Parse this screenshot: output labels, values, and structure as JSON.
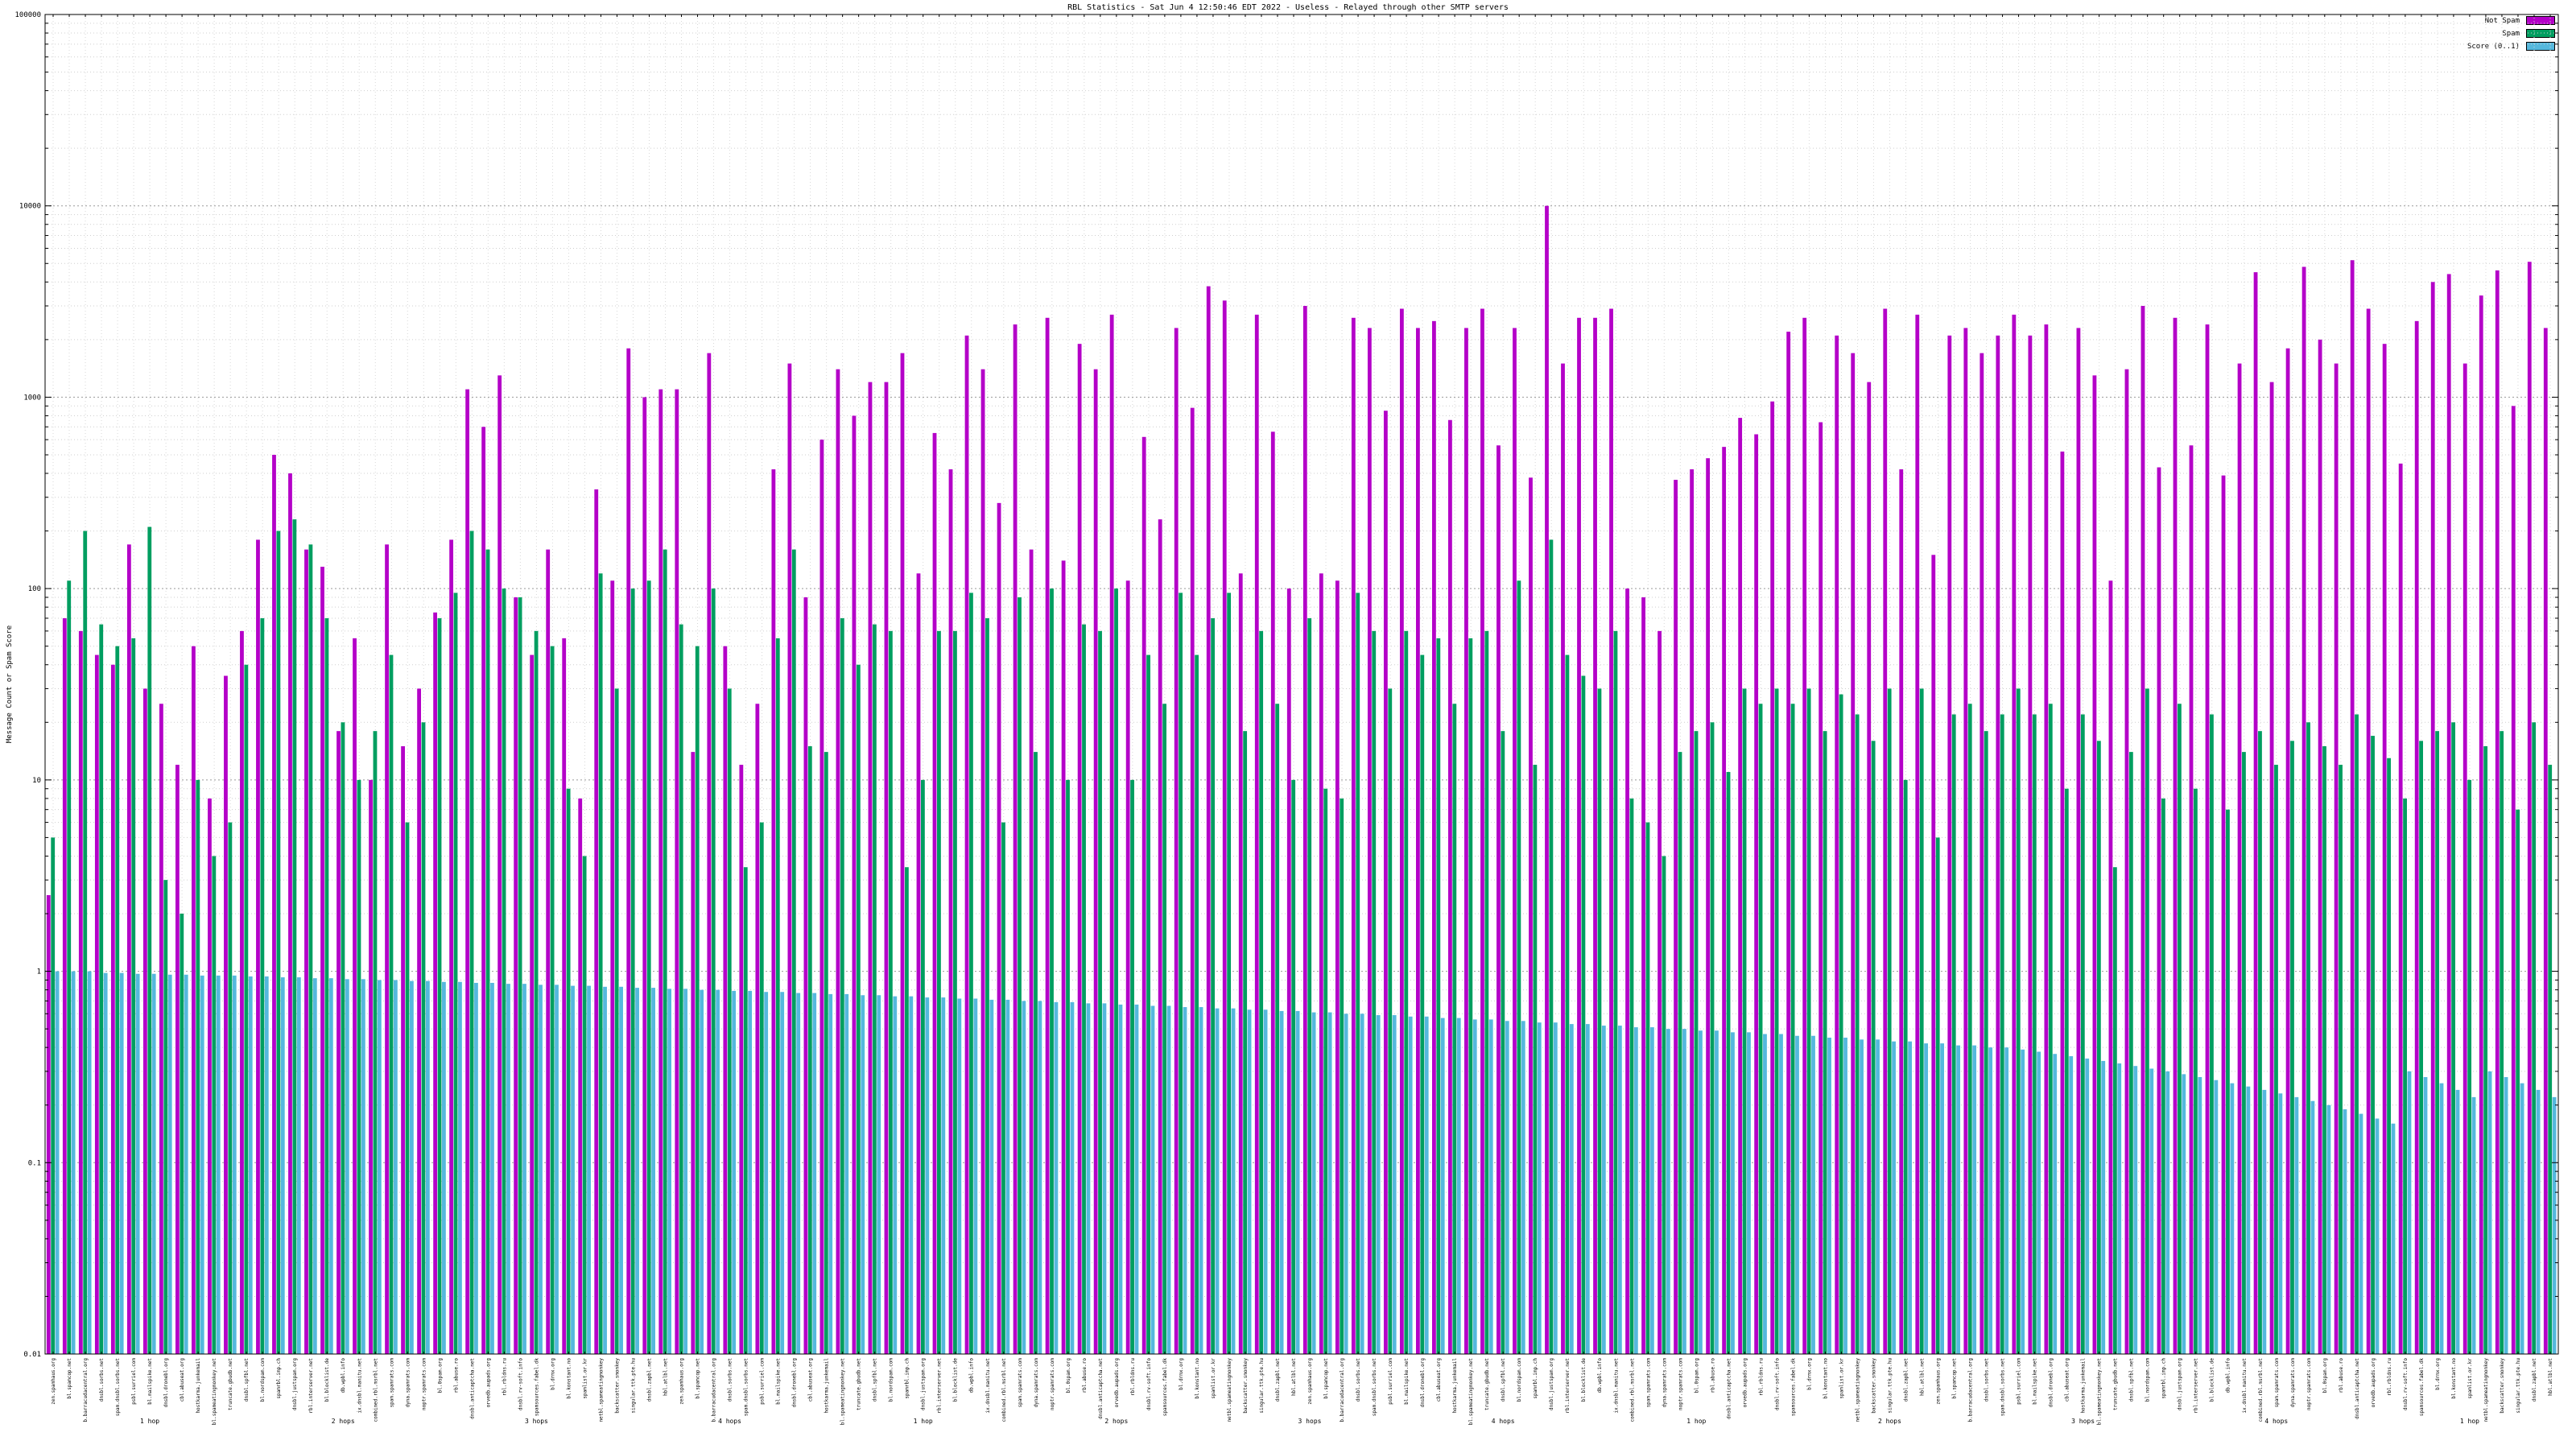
{
  "chart_data": {
    "type": "bar",
    "title": "RBL Statistics - Sat Jun 4 12:50:46 EDT 2022 - Useless - Relayed through other SMTP servers",
    "ylabel": "Message Count or Spam Score",
    "yscale": "log",
    "ylim": [
      0.01,
      100000
    ],
    "ytick_labels": [
      "0.01",
      "0.1",
      "1",
      "10",
      "100",
      "1000",
      "10000",
      "100000"
    ],
    "grid": true,
    "legend_position": "top-right",
    "categories": [
      "zen.spamhaus.org",
      "bl.spamcop.net",
      "b.barracudacentral.org",
      "dnsbl.sorbs.net",
      "spam.dnsbl.sorbs.net",
      "psbl.surriel.com",
      "bl.mailspike.net",
      "dnsbl.dronebl.org",
      "cbl.abuseat.org",
      "hostkarma.junkemail",
      "bl.spameatingmonkey.net",
      "truncate.gbudb.net",
      "dnsbl.spfbl.net",
      "bl.nordspam.com",
      "spamrbl.imp.ch",
      "dnsbl.justspam.org",
      "rbl.interserver.net",
      "bl.blocklist.de",
      "db.wpbl.info",
      "ix.dnsbl.manitu.net",
      "combined.rbl.msrbl.net",
      "spam.spamrats.com",
      "dyna.spamrats.com",
      "noptr.spamrats.com",
      "bl.0spam.org",
      "rbl.abuse.ro",
      "dnsbl.anticaptcha.net",
      "orvedb.aupads.org",
      "rbl.rbldns.ru",
      "dnsbl.rv-soft.info",
      "spamsources.fabel.dk",
      "bl.drmx.org",
      "bl.konstant.no",
      "spamlist.or.kr",
      "netbl.spameatingmonkey",
      "backscatter.smonkey",
      "singular.ttk.pte.hu",
      "dnsbl.zapbl.net",
      "hbl.atlbl.net"
    ],
    "hop_labels": [
      {
        "index": 6,
        "label": "1 hop"
      },
      {
        "index": 18,
        "label": "2 hops"
      },
      {
        "index": 30,
        "label": "3 hops"
      },
      {
        "index": 42,
        "label": "4 hops"
      },
      {
        "index": 54,
        "label": "1 hop"
      },
      {
        "index": 66,
        "label": "2 hops"
      },
      {
        "index": 78,
        "label": "3 hops"
      },
      {
        "index": 90,
        "label": "4 hops"
      },
      {
        "index": 102,
        "label": "1 hop"
      },
      {
        "index": 114,
        "label": "2 hops"
      },
      {
        "index": 126,
        "label": "3 hops"
      },
      {
        "index": 138,
        "label": "4 hops"
      },
      {
        "index": 150,
        "label": "1 hop"
      }
    ],
    "series": [
      {
        "name": "Not Spam",
        "color": "#b400c8",
        "values": [
          2.5,
          70,
          60,
          45,
          40,
          170,
          30,
          25,
          12,
          50,
          8,
          35,
          60,
          180,
          500,
          400,
          160,
          130,
          18,
          55,
          10,
          170,
          15,
          30,
          75,
          180,
          1100,
          700,
          1300,
          90,
          45,
          160,
          55,
          8,
          330,
          110,
          1800,
          1000,
          1100,
          1100,
          14,
          1700,
          50,
          12,
          25,
          420,
          1500,
          90,
          600,
          1400,
          800,
          1200,
          1200,
          1700,
          120,
          650,
          420,
          2100,
          1400,
          280,
          2400,
          160,
          2600,
          140,
          1900,
          1400,
          2700,
          110,
          620,
          230,
          2300,
          880,
          3800,
          3200,
          120,
          2700,
          660,
          100,
          3000,
          120,
          110,
          2600,
          2300,
          850,
          2900,
          2300,
          2500,
          760,
          2300,
          2900,
          560,
          2300,
          380,
          10000,
          1500,
          2600,
          2600,
          2900,
          100,
          90,
          60,
          370,
          420,
          480,
          550,
          780,
          640,
          950,
          2200,
          2600,
          740,
          2100,
          1700,
          1200,
          2900,
          420,
          2700,
          150,
          2100,
          2300,
          1700,
          2100,
          2700,
          2100,
          2400,
          520,
          2300,
          1300,
          110,
          1400,
          3000,
          430,
          2600,
          560,
          2400,
          390,
          1500,
          4500,
          1200,
          1800,
          4800,
          2000,
          1500,
          5200,
          2900,
          1900,
          450,
          2500,
          4000,
          4400,
          1500,
          3400,
          4600,
          900,
          5100,
          2300
        ]
      },
      {
        "name": "Spam",
        "color": "#009e60",
        "values": [
          5,
          110,
          200,
          65,
          50,
          55,
          210,
          3,
          2,
          10,
          4,
          6,
          40,
          70,
          200,
          230,
          170,
          70,
          20,
          10,
          18,
          45,
          6,
          20,
          70,
          95,
          200,
          160,
          100,
          90,
          60,
          50,
          9,
          4,
          120,
          30,
          100,
          110,
          160,
          65,
          50,
          100,
          30,
          3.5,
          6,
          55,
          160,
          15,
          14,
          70,
          40,
          65,
          60,
          3.5,
          10,
          60,
          60,
          95,
          70,
          6,
          90,
          14,
          100,
          10,
          65,
          60,
          100,
          10,
          45,
          25,
          95,
          45,
          70,
          95,
          18,
          60,
          25,
          10,
          70,
          9,
          8,
          95,
          60,
          30,
          60,
          45,
          55,
          25,
          55,
          60,
          18,
          110,
          12,
          180,
          45,
          35,
          30,
          60,
          8,
          6,
          4,
          14,
          18,
          20,
          11,
          30,
          25,
          30,
          25,
          30,
          18,
          28,
          22,
          16,
          30,
          10,
          30,
          5,
          22,
          25,
          18,
          22,
          30,
          22,
          25,
          9,
          22,
          16,
          3.5,
          14,
          30,
          8,
          25,
          9,
          22,
          7,
          14,
          18,
          12,
          16,
          20,
          15,
          12,
          22,
          17,
          13,
          8,
          16,
          18,
          20,
          10,
          15,
          18,
          7,
          20,
          12
        ]
      },
      {
        "name": "Score (0..1)",
        "color": "#55b8dd",
        "values": [
          1.0,
          1.0,
          1.0,
          0.98,
          0.98,
          0.97,
          0.97,
          0.96,
          0.96,
          0.95,
          0.95,
          0.95,
          0.94,
          0.94,
          0.93,
          0.93,
          0.92,
          0.92,
          0.91,
          0.91,
          0.9,
          0.9,
          0.89,
          0.89,
          0.88,
          0.88,
          0.87,
          0.87,
          0.86,
          0.86,
          0.85,
          0.85,
          0.84,
          0.84,
          0.83,
          0.83,
          0.82,
          0.82,
          0.81,
          0.81,
          0.8,
          0.8,
          0.79,
          0.79,
          0.78,
          0.78,
          0.77,
          0.77,
          0.76,
          0.76,
          0.75,
          0.75,
          0.74,
          0.74,
          0.73,
          0.73,
          0.72,
          0.72,
          0.71,
          0.71,
          0.7,
          0.7,
          0.69,
          0.69,
          0.68,
          0.68,
          0.67,
          0.67,
          0.66,
          0.66,
          0.65,
          0.65,
          0.64,
          0.64,
          0.63,
          0.63,
          0.62,
          0.62,
          0.61,
          0.61,
          0.6,
          0.6,
          0.59,
          0.59,
          0.58,
          0.58,
          0.57,
          0.57,
          0.56,
          0.56,
          0.55,
          0.55,
          0.54,
          0.54,
          0.53,
          0.53,
          0.52,
          0.52,
          0.51,
          0.51,
          0.5,
          0.5,
          0.49,
          0.49,
          0.48,
          0.48,
          0.47,
          0.47,
          0.46,
          0.46,
          0.45,
          0.45,
          0.44,
          0.44,
          0.43,
          0.43,
          0.42,
          0.42,
          0.41,
          0.41,
          0.4,
          0.4,
          0.39,
          0.38,
          0.37,
          0.36,
          0.35,
          0.34,
          0.33,
          0.32,
          0.31,
          0.3,
          0.29,
          0.28,
          0.27,
          0.26,
          0.25,
          0.24,
          0.23,
          0.22,
          0.21,
          0.2,
          0.19,
          0.18,
          0.17,
          0.16,
          0.3,
          0.28,
          0.26,
          0.24,
          0.22,
          0.3,
          0.28,
          0.26,
          0.24,
          0.22
        ]
      }
    ]
  }
}
